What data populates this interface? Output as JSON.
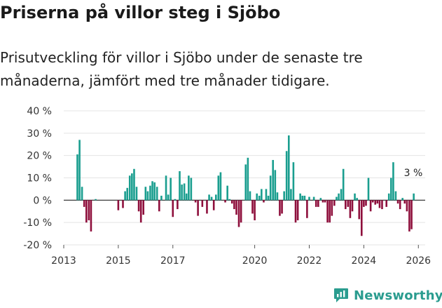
{
  "chart_data": {
    "type": "bar",
    "title": "Priserna på villor steg i Sjöbo",
    "subtitle": "Prisutveckling för villor i Sjöbo under de senaste tre månaderna, jämfört med tre månader tidigare.",
    "unit": "%",
    "ylim": [
      -20,
      40
    ],
    "yticks": [
      40,
      30,
      20,
      10,
      0,
      -10,
      -20
    ],
    "ytick_labels": [
      "40 %",
      "30 %",
      "20 %",
      "10 %",
      "0 %",
      "-10 %",
      "-20 %"
    ],
    "x_start": 2013.0,
    "x_end": 2026.25,
    "xticks": [
      2013,
      2015,
      2017,
      2020,
      2022,
      2024,
      2026
    ],
    "xtick_labels": [
      "2013",
      "2015",
      "2017",
      "2020",
      "2022",
      "2024",
      "2026"
    ],
    "positive_color": "#1a9e8f",
    "negative_color": "#8e0f3c",
    "annotation": "3 %",
    "series": [
      {
        "x": 2013.5,
        "value": 20.5
      },
      {
        "x": 2013.58,
        "value": 27
      },
      {
        "x": 2013.67,
        "value": 6
      },
      {
        "x": 2013.75,
        "value": -3
      },
      {
        "x": 2013.83,
        "value": -10
      },
      {
        "x": 2013.92,
        "value": -9
      },
      {
        "x": 2014.0,
        "value": -14
      },
      {
        "x": 2014.17,
        "value": 0.5
      },
      {
        "x": 2015.0,
        "value": -4.5
      },
      {
        "x": 2015.17,
        "value": -3.5
      },
      {
        "x": 2015.25,
        "value": 4
      },
      {
        "x": 2015.33,
        "value": 5.5
      },
      {
        "x": 2015.42,
        "value": 11
      },
      {
        "x": 2015.5,
        "value": 12
      },
      {
        "x": 2015.58,
        "value": 14
      },
      {
        "x": 2015.67,
        "value": 6
      },
      {
        "x": 2015.75,
        "value": -5
      },
      {
        "x": 2015.83,
        "value": -10
      },
      {
        "x": 2015.92,
        "value": -6.5
      },
      {
        "x": 2016.0,
        "value": 6
      },
      {
        "x": 2016.08,
        "value": 4
      },
      {
        "x": 2016.17,
        "value": 6.5
      },
      {
        "x": 2016.25,
        "value": 8.5
      },
      {
        "x": 2016.33,
        "value": 8
      },
      {
        "x": 2016.42,
        "value": 6
      },
      {
        "x": 2016.5,
        "value": -5
      },
      {
        "x": 2016.58,
        "value": 2
      },
      {
        "x": 2016.75,
        "value": 11
      },
      {
        "x": 2016.83,
        "value": 2.5
      },
      {
        "x": 2016.92,
        "value": 10
      },
      {
        "x": 2017.0,
        "value": -7.5
      },
      {
        "x": 2017.08,
        "value": 0.5
      },
      {
        "x": 2017.17,
        "value": -4
      },
      {
        "x": 2017.25,
        "value": 13
      },
      {
        "x": 2017.33,
        "value": 7
      },
      {
        "x": 2017.42,
        "value": 7.5
      },
      {
        "x": 2017.5,
        "value": 3
      },
      {
        "x": 2017.58,
        "value": 11
      },
      {
        "x": 2017.67,
        "value": 10
      },
      {
        "x": 2017.83,
        "value": -1
      },
      {
        "x": 2017.92,
        "value": -7
      },
      {
        "x": 2018.08,
        "value": -3
      },
      {
        "x": 2018.25,
        "value": -6
      },
      {
        "x": 2018.33,
        "value": 2.5
      },
      {
        "x": 2018.42,
        "value": 1.5
      },
      {
        "x": 2018.5,
        "value": -4.5
      },
      {
        "x": 2018.58,
        "value": 2.5
      },
      {
        "x": 2018.67,
        "value": 11
      },
      {
        "x": 2018.75,
        "value": 12.5
      },
      {
        "x": 2018.92,
        "value": -1
      },
      {
        "x": 2019.0,
        "value": 6.5
      },
      {
        "x": 2019.08,
        "value": 0.5
      },
      {
        "x": 2019.17,
        "value": -1.5
      },
      {
        "x": 2019.25,
        "value": -4
      },
      {
        "x": 2019.33,
        "value": -6.5
      },
      {
        "x": 2019.42,
        "value": -12
      },
      {
        "x": 2019.5,
        "value": -10
      },
      {
        "x": 2019.67,
        "value": 16
      },
      {
        "x": 2019.75,
        "value": 19
      },
      {
        "x": 2019.83,
        "value": 4
      },
      {
        "x": 2019.92,
        "value": -6
      },
      {
        "x": 2020.0,
        "value": -9
      },
      {
        "x": 2020.08,
        "value": 3
      },
      {
        "x": 2020.17,
        "value": 2
      },
      {
        "x": 2020.25,
        "value": 5
      },
      {
        "x": 2020.33,
        "value": -1
      },
      {
        "x": 2020.42,
        "value": 5
      },
      {
        "x": 2020.5,
        "value": 2
      },
      {
        "x": 2020.58,
        "value": 11
      },
      {
        "x": 2020.67,
        "value": 18
      },
      {
        "x": 2020.75,
        "value": 13.5
      },
      {
        "x": 2020.83,
        "value": 3.5
      },
      {
        "x": 2020.92,
        "value": -7
      },
      {
        "x": 2021.0,
        "value": -6
      },
      {
        "x": 2021.08,
        "value": 4
      },
      {
        "x": 2021.17,
        "value": 22
      },
      {
        "x": 2021.25,
        "value": 29
      },
      {
        "x": 2021.33,
        "value": 5
      },
      {
        "x": 2021.42,
        "value": 17
      },
      {
        "x": 2021.5,
        "value": -10
      },
      {
        "x": 2021.58,
        "value": -9
      },
      {
        "x": 2021.67,
        "value": 3
      },
      {
        "x": 2021.75,
        "value": 2
      },
      {
        "x": 2021.83,
        "value": 2
      },
      {
        "x": 2021.92,
        "value": -8
      },
      {
        "x": 2022.0,
        "value": 1.5
      },
      {
        "x": 2022.17,
        "value": 1.5
      },
      {
        "x": 2022.25,
        "value": -3
      },
      {
        "x": 2022.33,
        "value": -3
      },
      {
        "x": 2022.42,
        "value": 1
      },
      {
        "x": 2022.5,
        "value": -1
      },
      {
        "x": 2022.58,
        "value": -1
      },
      {
        "x": 2022.67,
        "value": -10
      },
      {
        "x": 2022.75,
        "value": -10
      },
      {
        "x": 2022.83,
        "value": -7
      },
      {
        "x": 2022.92,
        "value": -2.5
      },
      {
        "x": 2023.0,
        "value": 1.5
      },
      {
        "x": 2023.08,
        "value": 3
      },
      {
        "x": 2023.17,
        "value": 5
      },
      {
        "x": 2023.25,
        "value": 14
      },
      {
        "x": 2023.33,
        "value": -4
      },
      {
        "x": 2023.42,
        "value": -3
      },
      {
        "x": 2023.5,
        "value": -8
      },
      {
        "x": 2023.58,
        "value": -5
      },
      {
        "x": 2023.67,
        "value": 3
      },
      {
        "x": 2023.75,
        "value": 1
      },
      {
        "x": 2023.83,
        "value": -8.5
      },
      {
        "x": 2023.92,
        "value": -16
      },
      {
        "x": 2024.0,
        "value": -3
      },
      {
        "x": 2024.08,
        "value": -2.5
      },
      {
        "x": 2024.17,
        "value": 10
      },
      {
        "x": 2024.25,
        "value": -5
      },
      {
        "x": 2024.33,
        "value": -1
      },
      {
        "x": 2024.42,
        "value": -2
      },
      {
        "x": 2024.5,
        "value": -1.5
      },
      {
        "x": 2024.58,
        "value": -3.5
      },
      {
        "x": 2024.67,
        "value": -4
      },
      {
        "x": 2024.83,
        "value": -3
      },
      {
        "x": 2024.92,
        "value": 3
      },
      {
        "x": 2025.0,
        "value": 10
      },
      {
        "x": 2025.08,
        "value": 17
      },
      {
        "x": 2025.17,
        "value": 4
      },
      {
        "x": 2025.25,
        "value": -1.5
      },
      {
        "x": 2025.33,
        "value": -4
      },
      {
        "x": 2025.42,
        "value": 1
      },
      {
        "x": 2025.5,
        "value": -1.5
      },
      {
        "x": 2025.58,
        "value": -5
      },
      {
        "x": 2025.67,
        "value": -14
      },
      {
        "x": 2025.75,
        "value": -13
      },
      {
        "x": 2025.83,
        "value": 3
      }
    ]
  },
  "logo": {
    "text": "Newsworthy",
    "icon": "newsworthy-logo-icon"
  }
}
